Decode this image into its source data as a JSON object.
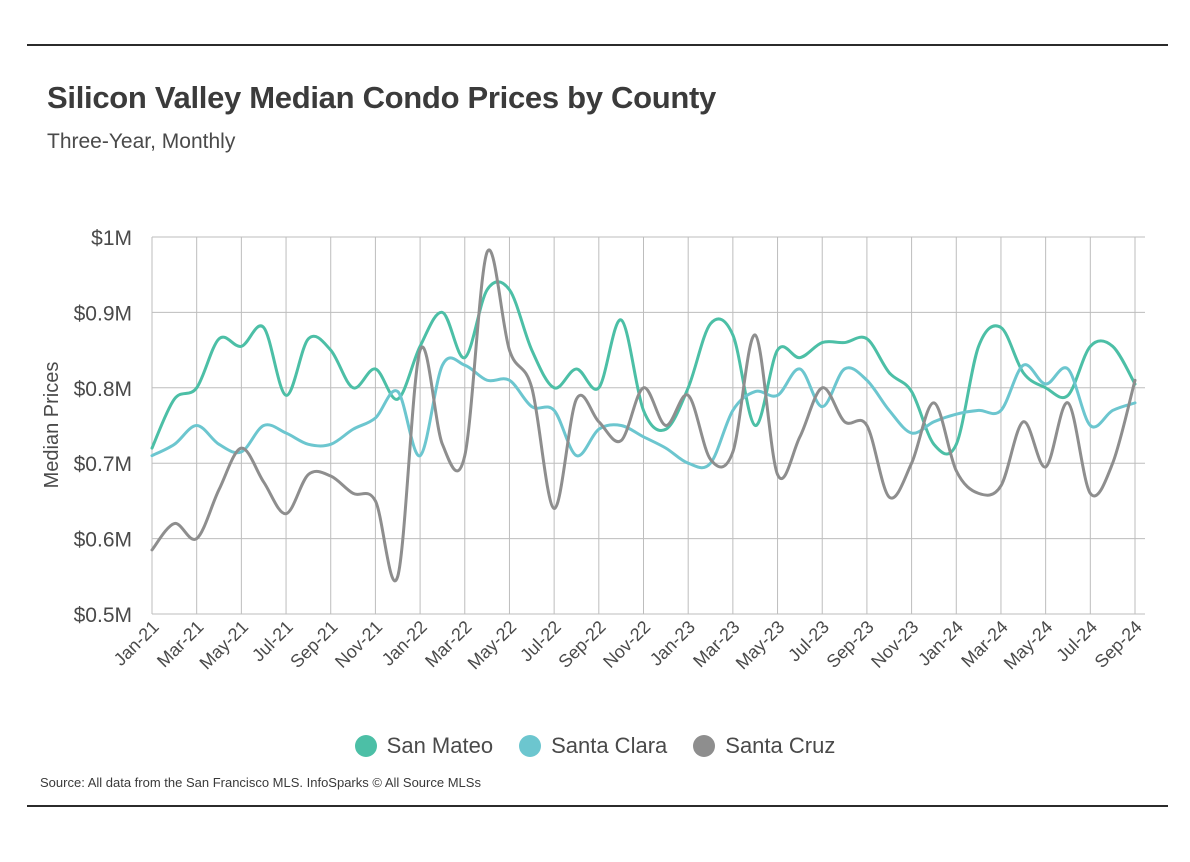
{
  "title": "Silicon Valley Median Condo Prices by County",
  "subtitle": "Three-Year, Monthly",
  "source": "Source:  All data from the San Francisco MLS. InfoSparks © All Source MLSs",
  "chart_data": {
    "type": "line",
    "ylabel": "Median Prices",
    "ylim": [
      0.5,
      1.0
    ],
    "yticks": [
      1.0,
      0.9,
      0.8,
      0.7,
      0.6,
      0.5
    ],
    "ytick_labels": [
      "$1M",
      "$0.9M",
      "$0.8M",
      "$0.7M",
      "$0.6M",
      "$0.5M"
    ],
    "grid": true,
    "legend_position": "bottom",
    "x": [
      "Jan-21",
      "Feb-21",
      "Mar-21",
      "Apr-21",
      "May-21",
      "Jun-21",
      "Jul-21",
      "Aug-21",
      "Sep-21",
      "Oct-21",
      "Nov-21",
      "Dec-21",
      "Jan-22",
      "Feb-22",
      "Mar-22",
      "Apr-22",
      "May-22",
      "Jun-22",
      "Jul-22",
      "Aug-22",
      "Sep-22",
      "Oct-22",
      "Nov-22",
      "Dec-22",
      "Jan-23",
      "Feb-23",
      "Mar-23",
      "Apr-23",
      "May-23",
      "Jun-23",
      "Jul-23",
      "Aug-23",
      "Sep-23",
      "Oct-23",
      "Nov-23",
      "Dec-23",
      "Jan-24",
      "Feb-24",
      "Mar-24",
      "Apr-24",
      "May-24",
      "Jun-24",
      "Jul-24",
      "Aug-24",
      "Sep-24"
    ],
    "xtick_labels": [
      "Jan-21",
      "Mar-21",
      "May-21",
      "Jul-21",
      "Sep-21",
      "Nov-21",
      "Jan-22",
      "Mar-22",
      "May-22",
      "Jul-22",
      "Sep-22",
      "Nov-22",
      "Jan-23",
      "Mar-23",
      "May-23",
      "Jul-23",
      "Sep-23",
      "Nov-23",
      "Jan-24",
      "Mar-24",
      "May-24",
      "Jul-24",
      "Sep-24"
    ],
    "series": [
      {
        "name": "San Mateo",
        "color": "#4cbfa6",
        "values": [
          0.72,
          0.785,
          0.8,
          0.865,
          0.855,
          0.88,
          0.79,
          0.865,
          0.85,
          0.8,
          0.825,
          0.785,
          0.855,
          0.9,
          0.84,
          0.93,
          0.93,
          0.85,
          0.8,
          0.825,
          0.8,
          0.89,
          0.77,
          0.745,
          0.8,
          0.885,
          0.87,
          0.75,
          0.85,
          0.84,
          0.86,
          0.86,
          0.865,
          0.82,
          0.795,
          0.725,
          0.725,
          0.855,
          0.88,
          0.82,
          0.8,
          0.79,
          0.855,
          0.855,
          0.805
        ]
      },
      {
        "name": "Santa Clara",
        "color": "#6cc6cf",
        "values": [
          0.71,
          0.725,
          0.75,
          0.725,
          0.715,
          0.75,
          0.74,
          0.725,
          0.725,
          0.745,
          0.76,
          0.795,
          0.71,
          0.83,
          0.83,
          0.81,
          0.81,
          0.775,
          0.77,
          0.71,
          0.745,
          0.75,
          0.735,
          0.72,
          0.7,
          0.7,
          0.77,
          0.795,
          0.79,
          0.825,
          0.775,
          0.825,
          0.81,
          0.77,
          0.74,
          0.755,
          0.765,
          0.77,
          0.77,
          0.83,
          0.805,
          0.825,
          0.75,
          0.77,
          0.78
        ]
      },
      {
        "name": "Santa Cruz",
        "color": "#8e8e8e",
        "values": [
          0.585,
          0.62,
          0.6,
          0.665,
          0.72,
          0.675,
          0.633,
          0.685,
          0.683,
          0.66,
          0.65,
          0.55,
          0.85,
          0.725,
          0.71,
          0.98,
          0.85,
          0.8,
          0.64,
          0.785,
          0.755,
          0.73,
          0.8,
          0.75,
          0.79,
          0.705,
          0.715,
          0.87,
          0.685,
          0.735,
          0.8,
          0.755,
          0.75,
          0.655,
          0.7,
          0.78,
          0.69,
          0.66,
          0.67,
          0.755,
          0.695,
          0.78,
          0.66,
          0.7,
          0.81
        ]
      }
    ]
  }
}
